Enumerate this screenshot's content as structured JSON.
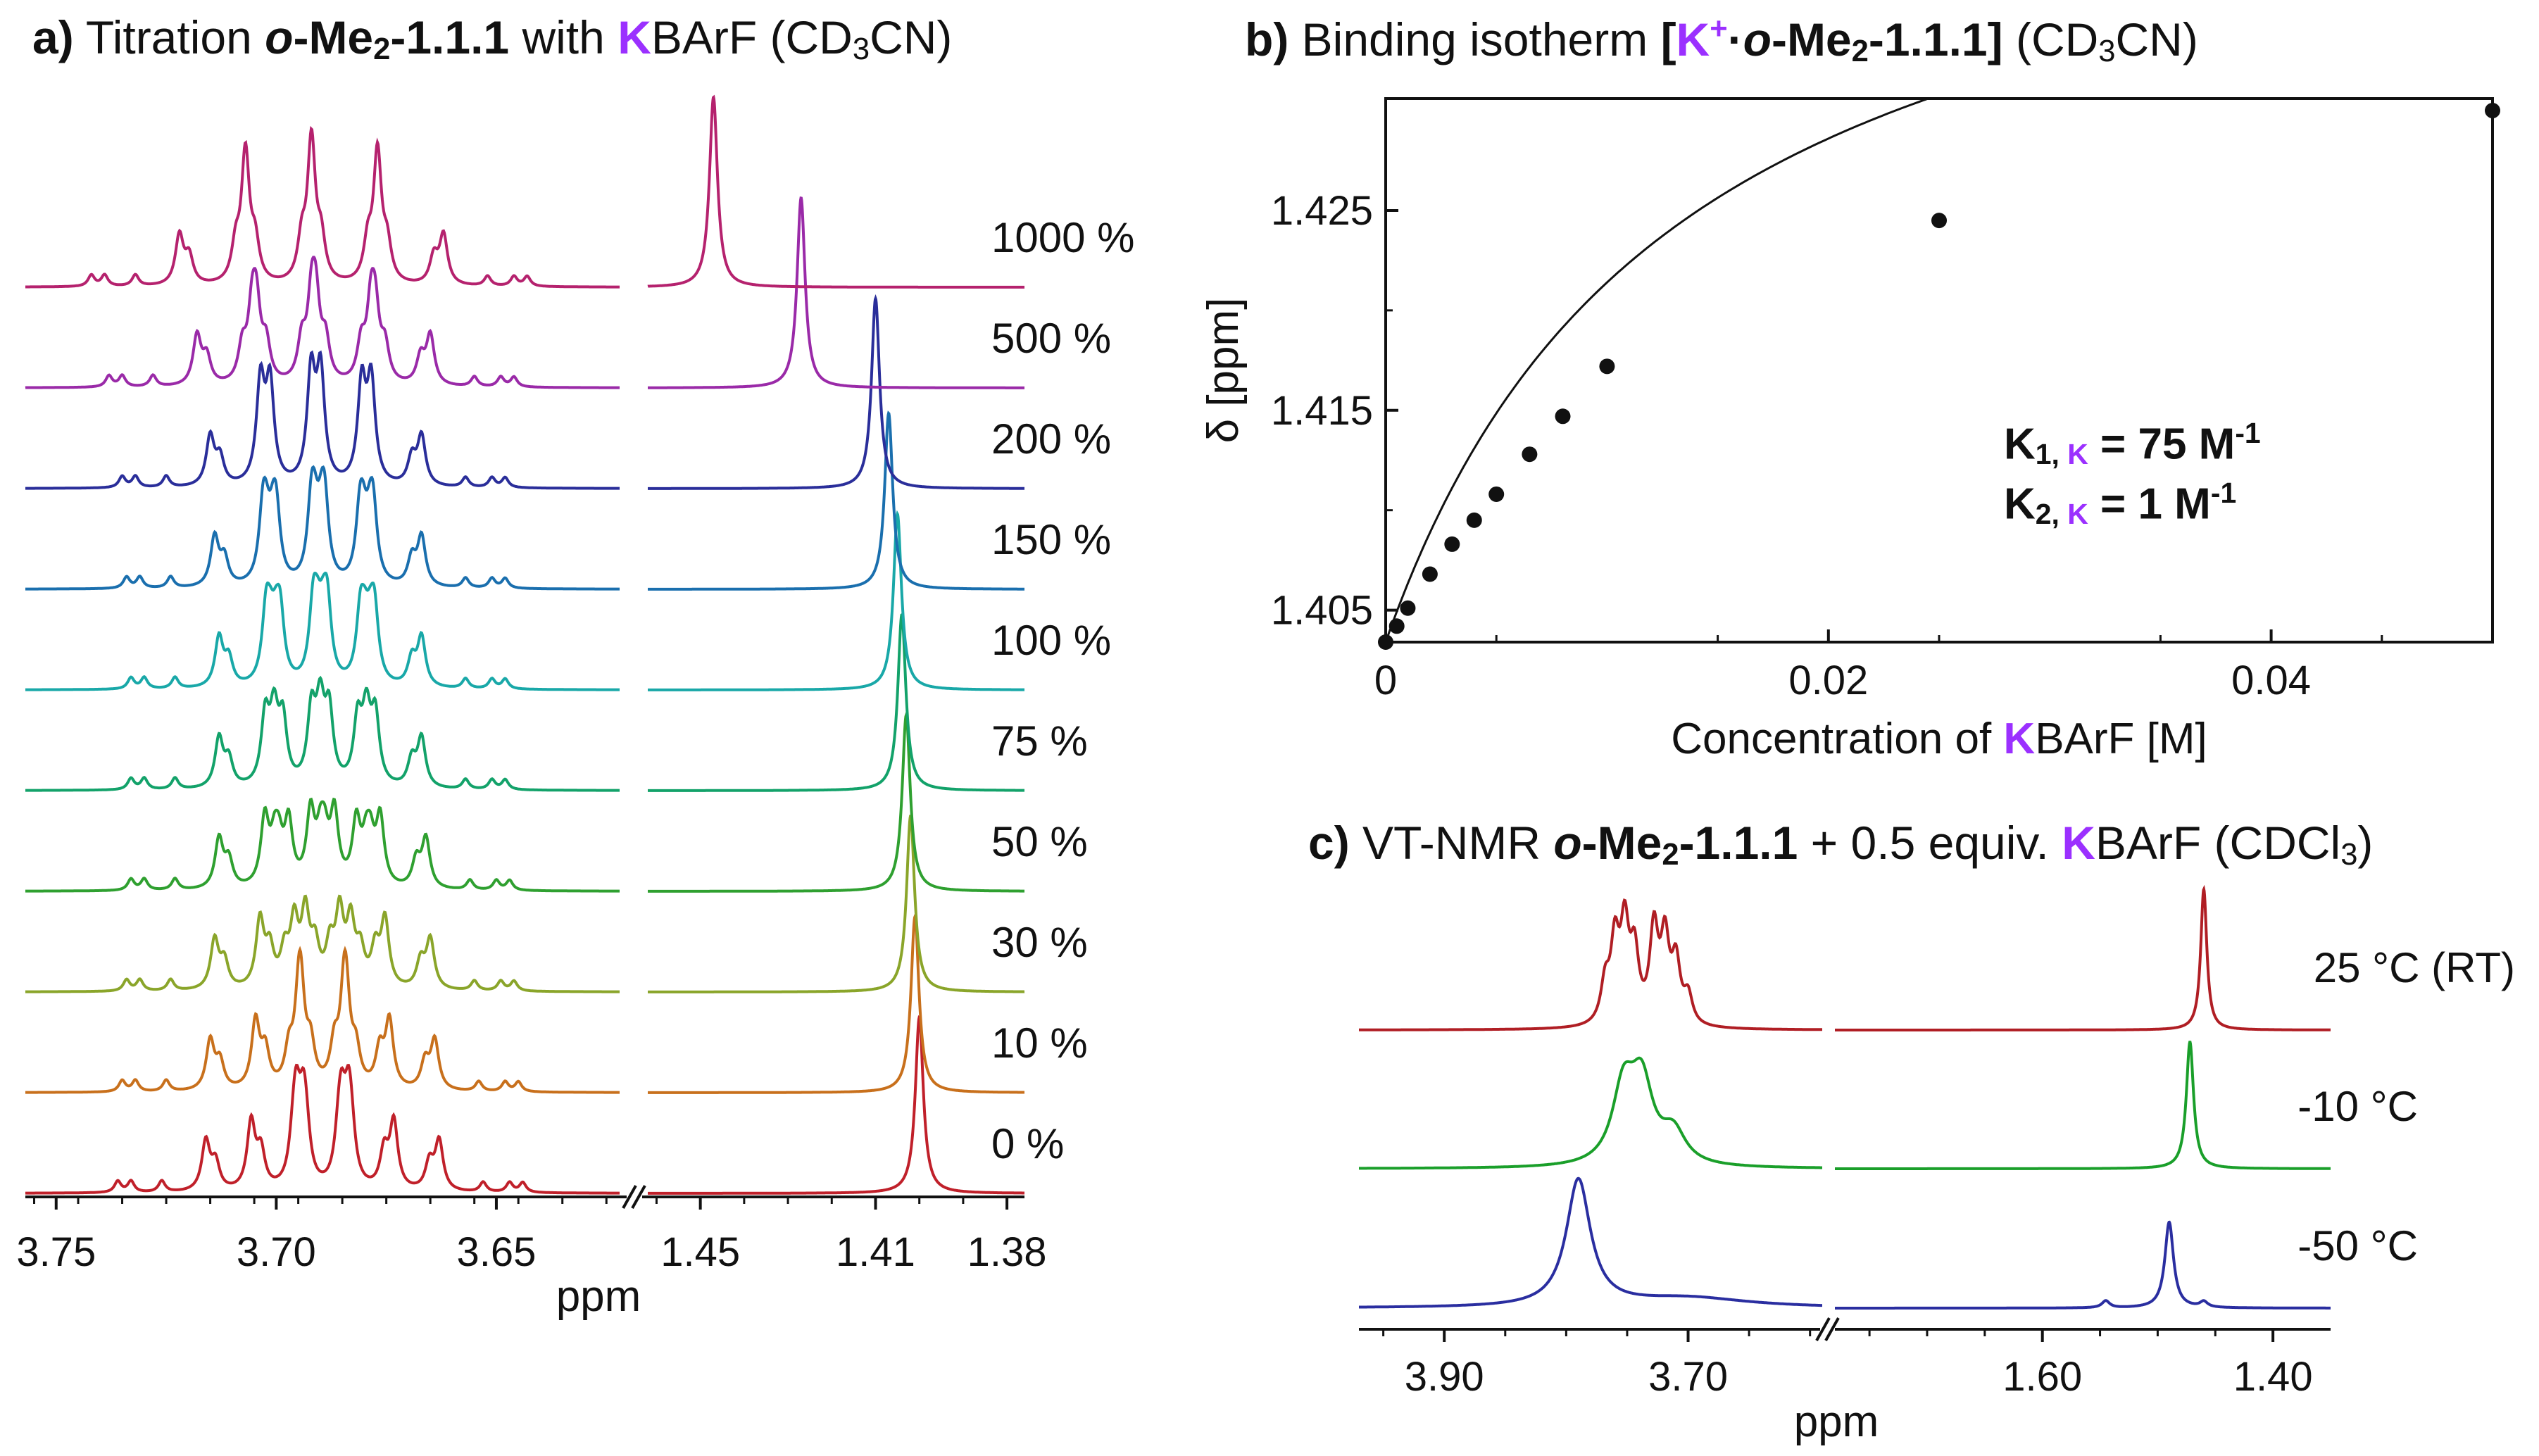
{
  "panels": {
    "a": {
      "label": "a)",
      "pre": " Titration ",
      "o": "o",
      "mid": "-Me",
      "sub2": "2",
      "cmpd": "-1.1.1",
      "with": " with ",
      "K": "K",
      "barf": "BArF",
      "solvent": " (CD",
      "solv_sub": "3",
      "solvent_end": "CN)"
    },
    "b": {
      "label": "b)",
      "pre": " Binding isotherm ",
      "br_open": "[",
      "K": "K",
      "plus": "+",
      "dot": "·",
      "o": "o",
      "mid": "-Me",
      "sub2": "2",
      "cmpd": "-1.1.1",
      "br_close": "]",
      "solvent": " (CD",
      "solv_sub": "3",
      "solvent_end": "CN)"
    },
    "c": {
      "label": "c)",
      "pre": " VT-NMR ",
      "o": "o",
      "mid": "-Me",
      "sub2": "2",
      "cmpd": "-1.1.1",
      "plus_text": " + 0.5 equiv. ",
      "K": "K",
      "barf": "BArF",
      "solvent": " (CDCl",
      "solv_sub": "3",
      "solvent_end": ")"
    }
  },
  "k_constants": {
    "k1_main": "K",
    "k1_sub": "1, ",
    "k1_subK": "K",
    "k1_val": " = 75 M",
    "k1_exp": "-1",
    "k2_main": "K",
    "k2_sub": "2, ",
    "k2_subK": "K",
    "k2_val": " = 1 M",
    "k2_exp": "-1"
  },
  "chart_data": [
    {
      "id": "a",
      "type": "line",
      "title": "Titration o-Me2-1.1.1 with KBArF (CD3CN)",
      "xlabel": "ppm",
      "x_ticks_left": [
        "3.75",
        "3.70",
        "3.65"
      ],
      "x_tick_values_left": [
        3.75,
        3.7,
        3.65
      ],
      "x_ticks_right": [
        "1.45",
        "1.41",
        "1.38"
      ],
      "x_tick_values_right": [
        1.45,
        1.41,
        1.38
      ],
      "xlim_left": [
        3.757,
        3.622
      ],
      "xlim_right": [
        1.462,
        1.376
      ],
      "axis_break": true,
      "series": [
        {
          "name": "0 %",
          "color": "#c0202a",
          "peak_right": 1.4,
          "outer_left": 3.716,
          "outer_right": 3.663,
          "sep": 0.0103,
          "tall": false
        },
        {
          "name": "10 %",
          "color": "#c8701c",
          "peak_right": 1.401,
          "outer_left": 3.715,
          "outer_right": 3.664,
          "sep": 0.0103,
          "tall": false
        },
        {
          "name": "30 %",
          "color": "#8aa52a",
          "peak_right": 1.402,
          "outer_left": 3.714,
          "outer_right": 3.665,
          "sep": 0.0103,
          "tall": false
        },
        {
          "name": "50 %",
          "color": "#2fa030",
          "peak_right": 1.403,
          "outer_left": 3.713,
          "outer_right": 3.666,
          "sep": 0.0104,
          "tall": false
        },
        {
          "name": "75 %",
          "color": "#13a26a",
          "peak_right": 1.404,
          "outer_left": 3.713,
          "outer_right": 3.667,
          "sep": 0.0105,
          "tall": false
        },
        {
          "name": "100 %",
          "color": "#19a8a8",
          "peak_right": 1.405,
          "outer_left": 3.713,
          "outer_right": 3.667,
          "sep": 0.0107,
          "tall": false
        },
        {
          "name": "150 %",
          "color": "#1a6fae",
          "peak_right": 1.407,
          "outer_left": 3.714,
          "outer_right": 3.667,
          "sep": 0.011,
          "tall": false
        },
        {
          "name": "200 %",
          "color": "#2a2e9a",
          "peak_right": 1.41,
          "outer_left": 3.715,
          "outer_right": 3.667,
          "sep": 0.0115,
          "tall": true
        },
        {
          "name": "500 %",
          "color": "#9a2aa8",
          "peak_right": 1.427,
          "outer_left": 3.718,
          "outer_right": 3.665,
          "sep": 0.0135,
          "tall": true
        },
        {
          "name": "1000 %",
          "color": "#b5226e",
          "peak_right": 1.447,
          "outer_left": 3.722,
          "outer_right": 3.662,
          "sep": 0.015,
          "tall": true
        }
      ]
    },
    {
      "id": "b",
      "type": "scatter",
      "title": "Binding isotherm [K+·o-Me2-1.1.1] (CD3CN)",
      "xlabel": "Concentration of KBArF [M]",
      "ylabel": "δ  [ppm]",
      "xlim": [
        0,
        0.05
      ],
      "ylim": [
        1.4034,
        1.4306
      ],
      "x_ticks": [
        "0",
        "0.02",
        "0.04"
      ],
      "x_tick_values": [
        0,
        0.02,
        0.04
      ],
      "y_ticks": [
        "1.405",
        "1.415",
        "1.425"
      ],
      "y_tick_values": [
        1.405,
        1.415,
        1.425
      ],
      "grid": false,
      "points": [
        {
          "x": 0.0,
          "y": 1.4034
        },
        {
          "x": 0.0005,
          "y": 1.4042
        },
        {
          "x": 0.001,
          "y": 1.4051
        },
        {
          "x": 0.002,
          "y": 1.4068
        },
        {
          "x": 0.003,
          "y": 1.4083
        },
        {
          "x": 0.004,
          "y": 1.4095
        },
        {
          "x": 0.005,
          "y": 1.4108
        },
        {
          "x": 0.0065,
          "y": 1.4128
        },
        {
          "x": 0.008,
          "y": 1.4147
        },
        {
          "x": 0.01,
          "y": 1.4172
        },
        {
          "x": 0.025,
          "y": 1.4245
        },
        {
          "x": 0.05,
          "y": 1.43
        }
      ],
      "fit": {
        "y0": 1.4034,
        "k1": 75,
        "k2": 1,
        "dmax": 0.042
      }
    },
    {
      "id": "c",
      "type": "line",
      "title": "VT-NMR o-Me2-1.1.1 + 0.5 equiv. KBArF (CDCl3)",
      "xlabel": "ppm",
      "x_ticks_left": [
        "3.90",
        "3.70"
      ],
      "x_tick_values_left": [
        3.9,
        3.7
      ],
      "x_ticks_right": [
        "1.60",
        "1.40"
      ],
      "x_tick_values_right": [
        1.6,
        1.4
      ],
      "xlim_left": [
        3.97,
        3.59
      ],
      "xlim_right": [
        1.78,
        1.35
      ],
      "axis_break": true,
      "series": [
        {
          "name": "-50 °C",
          "color": "#2a2ea0",
          "mode": "cold"
        },
        {
          "name": "-10 °C",
          "color": "#1a9f2a",
          "mode": "mid"
        },
        {
          "name": "25 °C (RT)",
          "color": "#b01e24",
          "mode": "rt"
        }
      ]
    }
  ]
}
